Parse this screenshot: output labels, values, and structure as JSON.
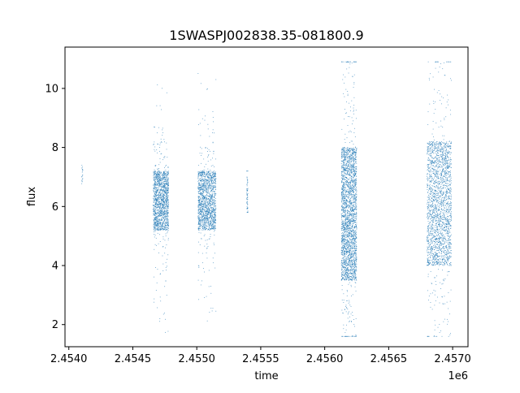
{
  "chart_data": {
    "type": "scatter",
    "title": "1SWASPJ002838.35-081800.9",
    "xlabel": "time",
    "ylabel": "flux",
    "x_offset_label": "1e6",
    "xlim": [
      2.45397,
      2.45712
    ],
    "ylim": [
      1.25,
      11.4
    ],
    "x_ticks": [
      2.454,
      2.4545,
      2.455,
      2.4555,
      2.456,
      2.4565,
      2.457
    ],
    "x_tick_labels": [
      "2.4540",
      "2.4545",
      "2.4550",
      "2.4555",
      "2.4560",
      "2.4565",
      "2.4570"
    ],
    "y_ticks": [
      2,
      4,
      6,
      8,
      10
    ],
    "y_tick_labels": [
      "2",
      "4",
      "6",
      "8",
      "10"
    ],
    "grid": false,
    "legend": "none",
    "point_color": "#1f77b4",
    "observing_seasons": [
      {
        "x_start": 2.4541,
        "x_end": 2.45411,
        "core_flux": [
          6.7,
          7.5
        ],
        "outlier_flux": [
          6.6,
          7.8
        ],
        "points": 18
      },
      {
        "x_start": 2.45466,
        "x_end": 2.45478,
        "core_flux": [
          5.2,
          7.2
        ],
        "outlier_flux": [
          1.7,
          10.4
        ],
        "points": 1500
      },
      {
        "x_start": 2.45501,
        "x_end": 2.45515,
        "core_flux": [
          5.2,
          7.2
        ],
        "outlier_flux": [
          2.0,
          10.9
        ],
        "points": 1500
      },
      {
        "x_start": 2.45539,
        "x_end": 2.4554,
        "core_flux": [
          5.9,
          7.0
        ],
        "outlier_flux": [
          5.8,
          7.2
        ],
        "points": 60
      },
      {
        "x_start": 2.45613,
        "x_end": 2.45625,
        "core_flux": [
          3.5,
          8.0
        ],
        "outlier_flux": [
          1.6,
          10.9
        ],
        "points": 2600
      },
      {
        "x_start": 2.4568,
        "x_end": 2.45699,
        "core_flux": [
          4.0,
          8.2
        ],
        "outlier_flux": [
          1.6,
          10.9
        ],
        "points": 2200
      }
    ]
  }
}
